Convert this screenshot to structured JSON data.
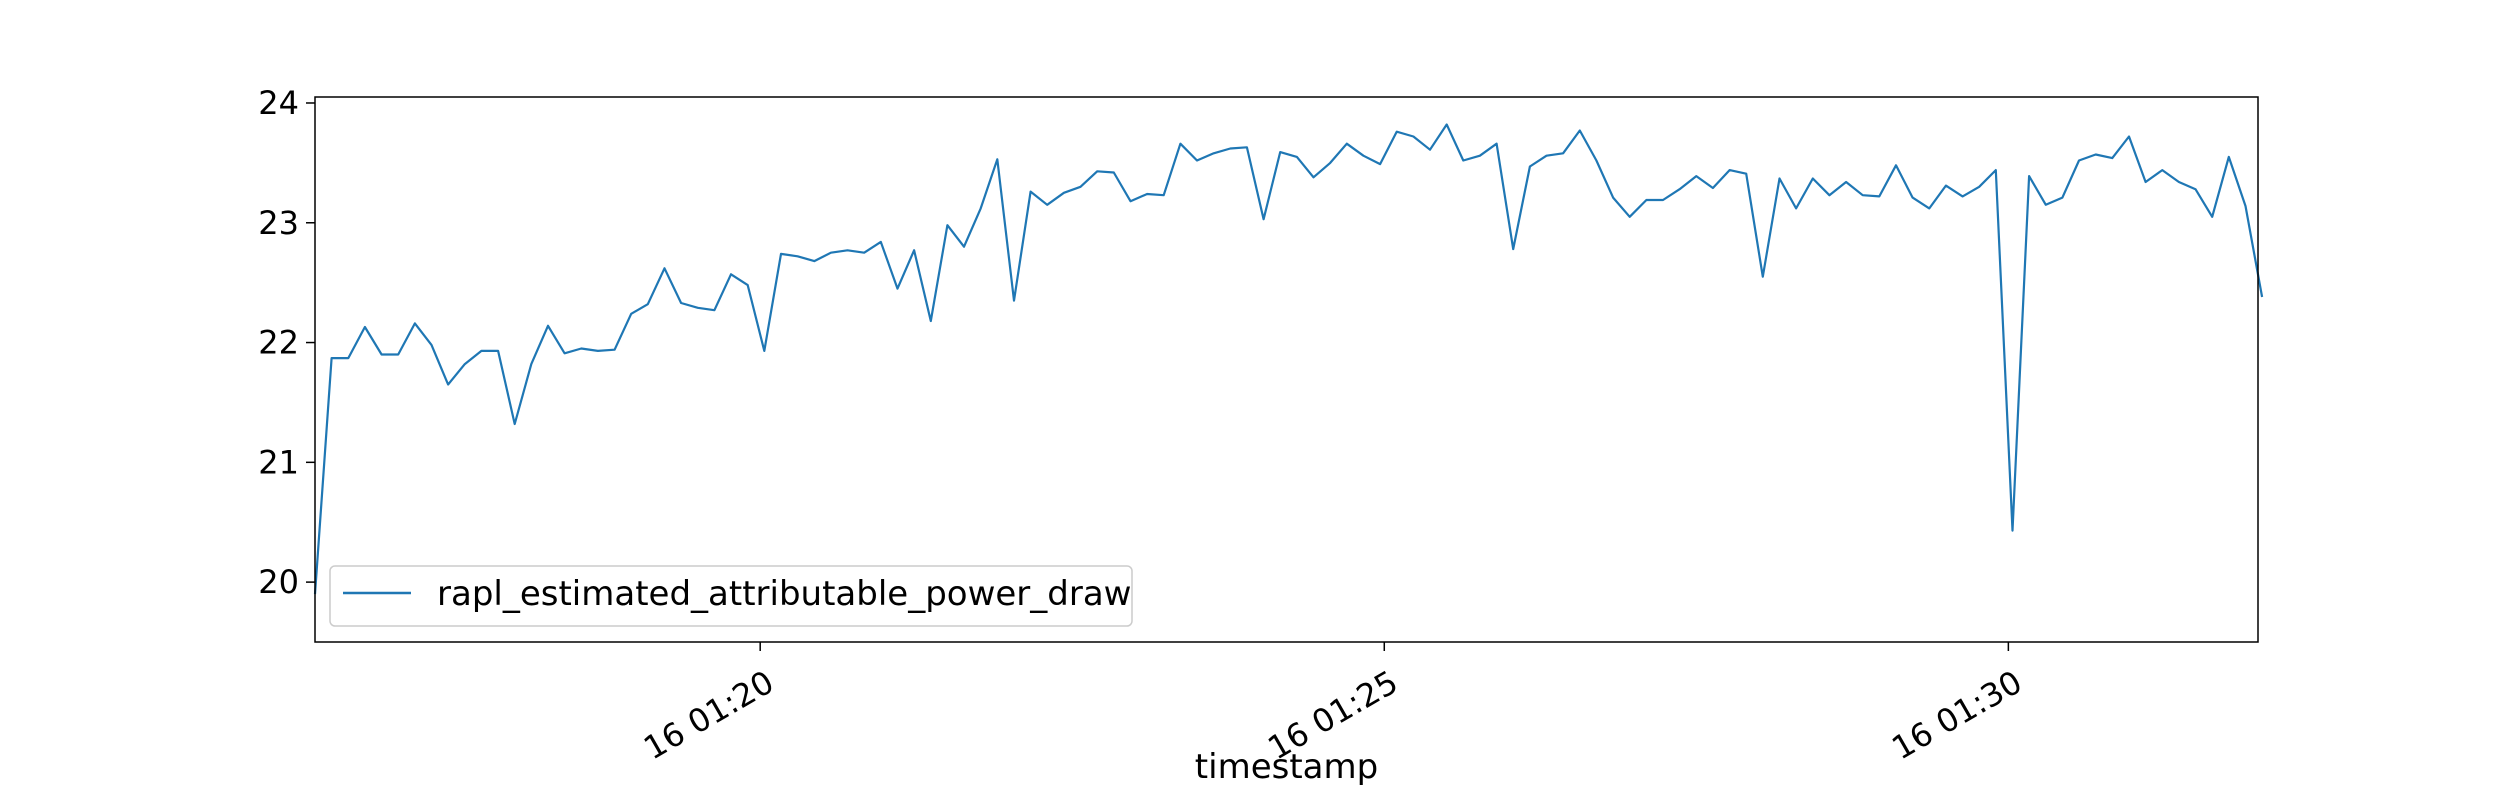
{
  "chart_data": {
    "type": "line",
    "title": "",
    "xlabel": "timestamp",
    "ylabel": "",
    "x_unit": "minutes",
    "x_range": [
      16.4333,
      32.0
    ],
    "ylim": [
      19.5,
      24.05
    ],
    "yticks": [
      20,
      21,
      22,
      23,
      24
    ],
    "ytick_labels": [
      "20",
      "21",
      "22",
      "23",
      "24"
    ],
    "xticks": [
      20,
      25,
      30
    ],
    "xtick_labels": [
      "16 01:20",
      "16 01:25",
      "16 01:30"
    ],
    "grid": false,
    "legend": "lower-left",
    "series": [
      {
        "name": "rapl_estimated_attributable_power_draw",
        "color": "#1f77b4",
        "x_start": 16.4333,
        "x_step": 0.13333,
        "values": [
          19.9,
          21.87,
          21.87,
          22.13,
          21.9,
          21.9,
          22.16,
          21.98,
          21.65,
          21.82,
          21.93,
          21.93,
          21.32,
          21.82,
          22.14,
          21.91,
          21.95,
          21.93,
          21.94,
          22.24,
          22.32,
          22.62,
          22.33,
          22.29,
          22.27,
          22.57,
          22.48,
          21.93,
          22.74,
          22.72,
          22.68,
          22.75,
          22.77,
          22.75,
          22.84,
          22.45,
          22.77,
          22.18,
          22.98,
          22.8,
          23.12,
          23.53,
          22.35,
          23.26,
          23.15,
          23.25,
          23.3,
          23.43,
          23.42,
          23.18,
          23.24,
          23.23,
          23.66,
          23.52,
          23.58,
          23.62,
          23.63,
          23.03,
          23.59,
          23.55,
          23.38,
          23.5,
          23.66,
          23.56,
          23.49,
          23.76,
          23.72,
          23.61,
          23.82,
          23.52,
          23.56,
          23.66,
          22.78,
          23.47,
          23.56,
          23.58,
          23.77,
          23.52,
          23.21,
          23.05,
          23.19,
          23.19,
          23.28,
          23.39,
          23.29,
          23.44,
          23.41,
          22.55,
          23.37,
          23.12,
          23.37,
          23.23,
          23.34,
          23.23,
          23.22,
          23.48,
          23.21,
          23.12,
          23.31,
          23.22,
          23.3,
          23.44,
          20.43,
          23.39,
          23.15,
          23.21,
          23.52,
          23.57,
          23.54,
          23.72,
          23.34,
          23.44,
          23.34,
          23.28,
          23.05,
          23.55,
          23.14,
          22.38
        ]
      }
    ]
  }
}
